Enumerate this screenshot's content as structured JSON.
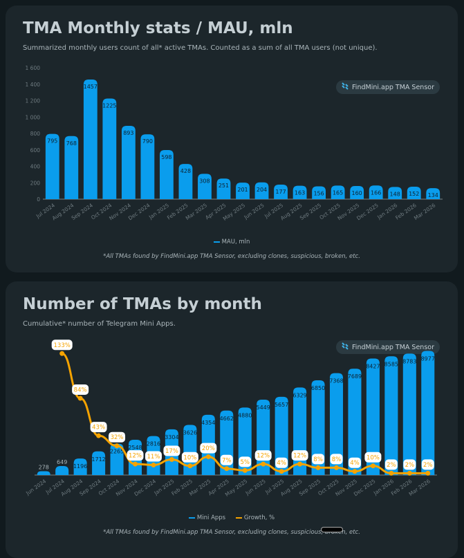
{
  "colors": {
    "bar": "#0a9ded",
    "line": "#f5a300",
    "card": "#1c262b",
    "page": "#111a1e"
  },
  "badge_icon": "findmini-logo-icon",
  "chart_data": [
    {
      "type": "bar",
      "title": "TMA Monthly stats / MAU, mln",
      "subtitle": "Summarized monthly users count of all* active TMAs. Counted as a sum of all TMA users (not unique).",
      "badge": "FindMini.app TMA Sensor",
      "categories": [
        "Jul 2024",
        "Aug 2024",
        "Sep 2024",
        "Oct 2024",
        "Nov 2024",
        "Dec 2024",
        "Jan 2025",
        "Feb 2025",
        "Mar 2025",
        "Apr 2025",
        "May 2025",
        "Jun 2025",
        "Jul 2025",
        "Aug 2025",
        "Sep 2025",
        "Oct 2025",
        "Nov 2025",
        "Dec 2025",
        "Jan 2026",
        "Feb 2026",
        "Mar 2026"
      ],
      "series": [
        {
          "name": "MAU, mln",
          "values": [
            795,
            768,
            1457,
            1225,
            893,
            790,
            598,
            428,
            308,
            251,
            201,
            204,
            177,
            163,
            156,
            165,
            160,
            166,
            148,
            152,
            134
          ]
        }
      ],
      "yticks": [
        "0",
        "200",
        "400",
        "600",
        "800",
        "1 000",
        "1 200",
        "1 400",
        "1 600"
      ],
      "ylim": [
        0,
        1600
      ],
      "legend": "bottom",
      "footnote": "*All TMAs found by FindMini.app TMA Sensor, excluding clones, suspicious, broken, etc."
    },
    {
      "type": "bar",
      "title": "Number of TMAs by month",
      "subtitle": "Cumulative* number of Telegram Mini Apps.",
      "badge": "FindMini.app TMA Sensor",
      "categories": [
        "Jun 2024",
        "Jul 2024",
        "Aug 2024",
        "Sep 2024",
        "Oct 2024",
        "Nov 2024",
        "Dec 2024",
        "Jan 2025",
        "Feb 2025",
        "Mar 2025",
        "Apr 2025",
        "May 2025",
        "Jun 2025",
        "Jul 2025",
        "Aug 2025",
        "Sep 2025",
        "Oct 2025",
        "Nov 2025",
        "Dec 2025",
        "Jan 2026",
        "Feb 2026",
        "Mar 2026"
      ],
      "series": [
        {
          "name": "Mini Apps",
          "type": "bar",
          "values": [
            278,
            649,
            1196,
            1712,
            2265,
            2548,
            2816,
            3304,
            3626,
            4354,
            4662,
            4880,
            5449,
            5657,
            6329,
            6850,
            7368,
            7689,
            8427,
            8585,
            8783,
            8977
          ]
        },
        {
          "name": "Growth, %",
          "type": "line",
          "values": [
            null,
            133,
            84,
            43,
            32,
            12,
            11,
            17,
            10,
            20,
            7,
            5,
            12,
            4,
            12,
            8,
            8,
            4,
            10,
            2,
            2,
            2
          ],
          "labels": [
            null,
            "133%",
            "84%",
            "43%",
            "32%",
            "12%",
            "11%",
            "17%",
            "10%",
            "20%",
            "7%",
            "5%",
            "12%",
            "4%",
            "12%",
            "8%",
            "8%",
            "4%",
            "10%",
            "2%",
            "2%",
            "2%"
          ]
        }
      ],
      "legend": "bottom",
      "footnote": "*All TMAs found by FindMini.app TMA Sensor, excluding clones, suspicious, broken, etc."
    }
  ]
}
